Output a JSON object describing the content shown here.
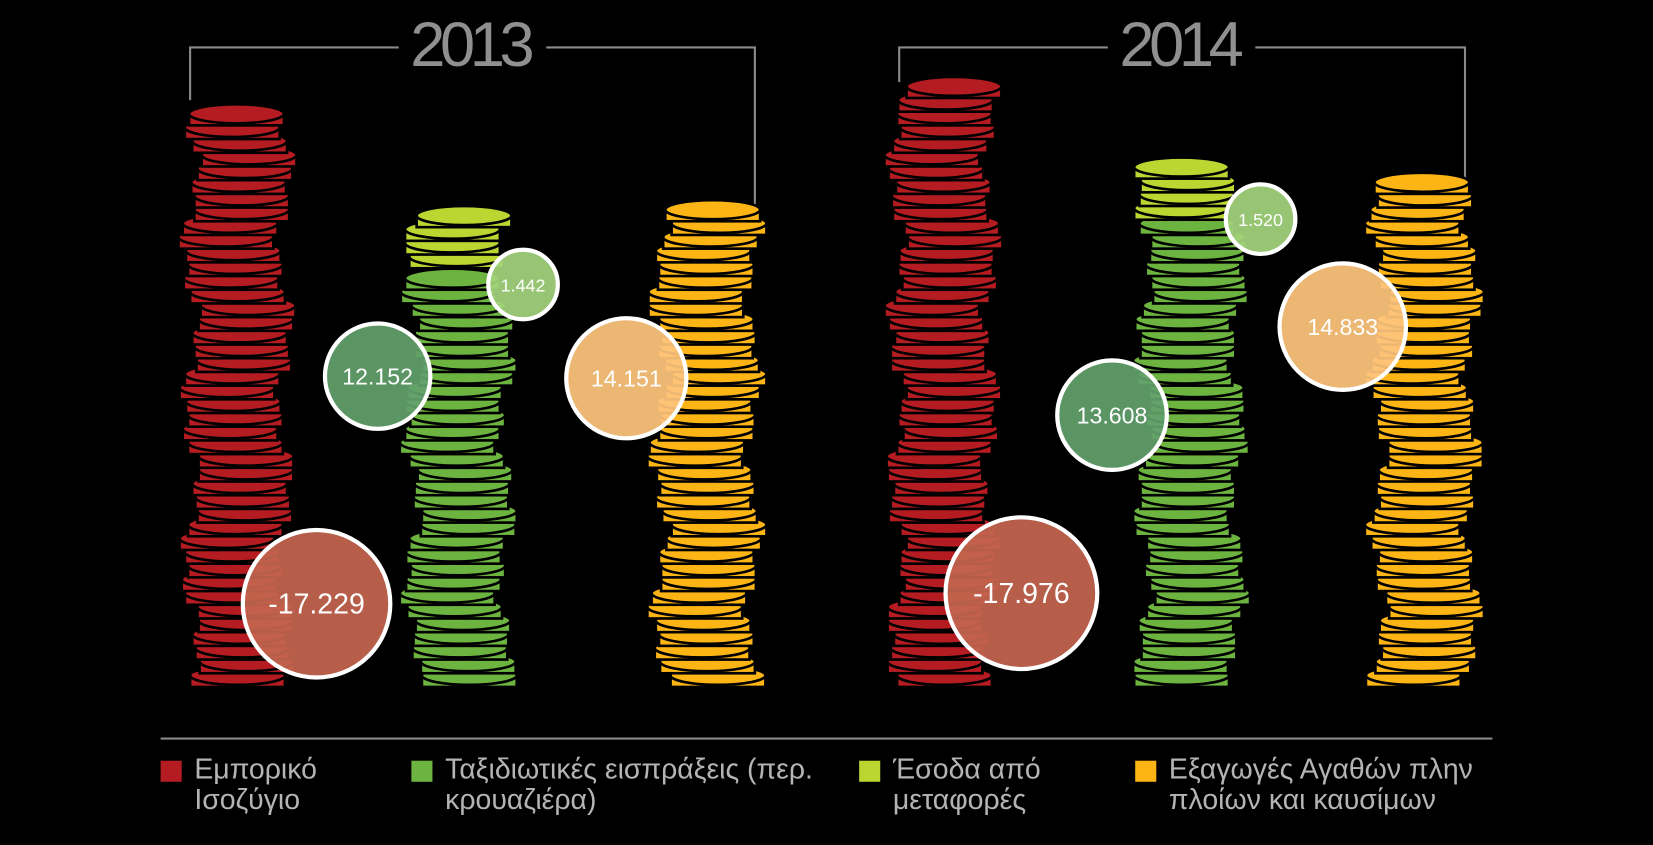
{
  "chart_data": {
    "type": "coin-stack",
    "categories": [
      "2013",
      "2014"
    ],
    "series": [
      {
        "name": "Εμπορικό Ισοζύγιο",
        "color": "#b51c22",
        "bubble_color": "#c4654f",
        "values": [
          -17229,
          -17976
        ],
        "value_labels": [
          "-17.229",
          "-17.976"
        ]
      },
      {
        "name": "Ταξιδιωτικές εισπράξεις (περ. κρουαζιέρα)",
        "color": "#6cb43f",
        "bubble_color": "#62a06c",
        "values": [
          12152,
          13608
        ],
        "value_labels": [
          "12.152",
          "13.608"
        ]
      },
      {
        "name": "Έσοδα από μεταφορές",
        "color": "#bcd631",
        "bubble_color": "#a2d47c",
        "values": [
          1442,
          1520
        ],
        "value_labels": [
          "1.442",
          "1.520"
        ]
      },
      {
        "name": "Εξαγωγές Αγαθών πλην πλοίων και καυσίμων",
        "color": "#fdb515",
        "bubble_color": "#fec47c",
        "values": [
          14151,
          14833
        ],
        "value_labels": [
          "14.151",
          "14.833"
        ]
      }
    ]
  }
}
